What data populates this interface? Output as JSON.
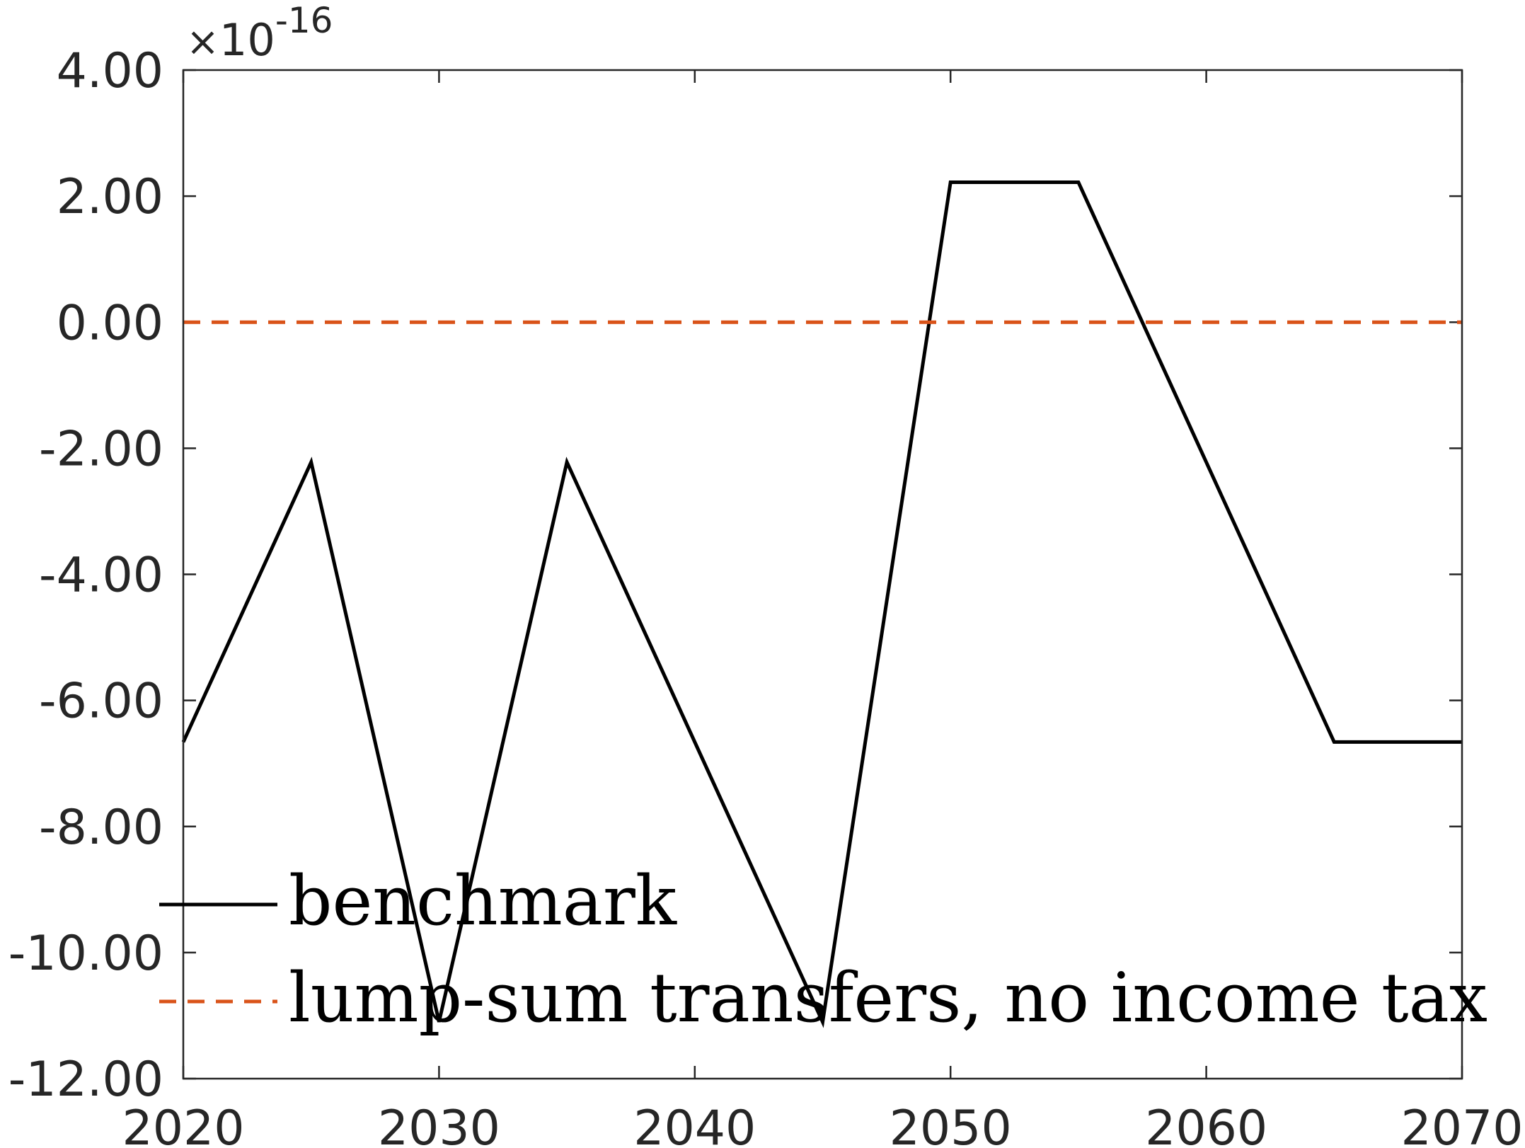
{
  "chart_data": {
    "type": "line",
    "title": "",
    "xlabel": "",
    "ylabel": "",
    "xlim": [
      2020,
      2070
    ],
    "ylim": [
      -12,
      4
    ],
    "xticks": [
      "2020",
      "2030",
      "2040",
      "2050",
      "2060",
      "2070"
    ],
    "yticks": [
      "4.00",
      "2.00",
      "0.00",
      "-2.00",
      "-4.00",
      "-6.00",
      "-8.00",
      "-10.00",
      "-12.00"
    ],
    "y_exponent": {
      "base": "10",
      "power": "-16"
    },
    "grid": false,
    "legend_position": "bottom-left",
    "series": [
      {
        "name": "benchmark",
        "color": "#000000",
        "style": "solid",
        "x": [
          2020,
          2025,
          2030,
          2035,
          2040,
          2045,
          2050,
          2055,
          2060,
          2065,
          2070
        ],
        "y": [
          -6.66,
          -2.22,
          -11.1,
          -2.22,
          -6.66,
          -11.1,
          2.22,
          2.22,
          -2.22,
          -6.66,
          -6.66
        ]
      },
      {
        "name": "lump-sum transfers, no income tax",
        "color": "#D95319",
        "style": "dashed",
        "x": [
          2020,
          2070
        ],
        "y": [
          0,
          0
        ]
      }
    ]
  }
}
